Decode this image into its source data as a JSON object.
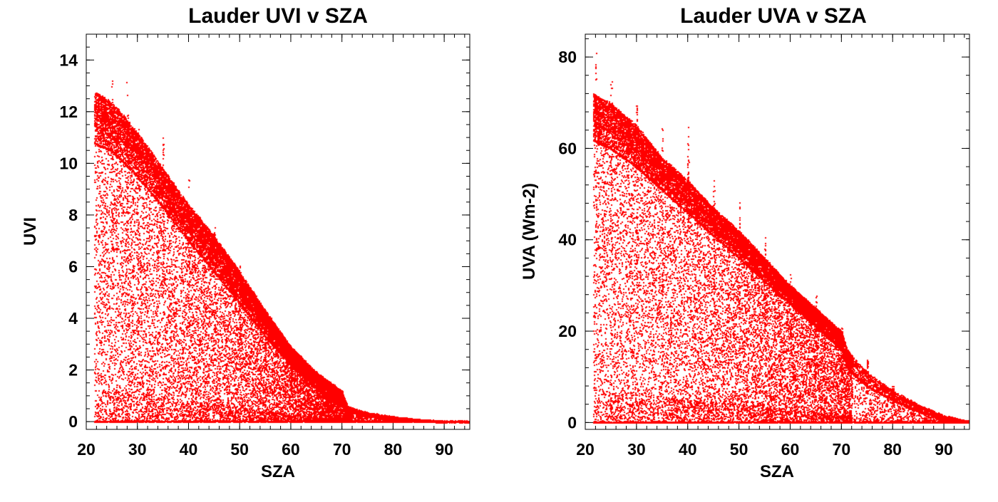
{
  "colors": {
    "background": "#ffffff",
    "axes": "#000000",
    "points": "#ff0000"
  },
  "chart_data": [
    {
      "type": "scatter",
      "title": "Lauder UVI v SZA",
      "xlabel": "SZA",
      "ylabel": "UVI",
      "xlim": [
        20,
        95
      ],
      "ylim": [
        -0.3,
        15
      ],
      "xticks": [
        20,
        30,
        40,
        50,
        60,
        70,
        80,
        90
      ],
      "yticks": [
        0,
        2,
        4,
        6,
        8,
        10,
        12,
        14
      ],
      "x_minor_step": 2,
      "y_minor_step": 0.5,
      "grid": false,
      "legend": "none",
      "sza_min": 21.5,
      "upper_envelope": [
        [
          21.5,
          12.8
        ],
        [
          25,
          12.4
        ],
        [
          30,
          11.2
        ],
        [
          35,
          9.8
        ],
        [
          40,
          8.4
        ],
        [
          45,
          7.2
        ],
        [
          50,
          5.8
        ],
        [
          55,
          4.3
        ],
        [
          60,
          2.9
        ],
        [
          65,
          1.9
        ],
        [
          70,
          1.2
        ],
        [
          71,
          0.6
        ],
        [
          75,
          0.35
        ],
        [
          80,
          0.2
        ],
        [
          85,
          0.08
        ],
        [
          90,
          0.02
        ],
        [
          95,
          0.0
        ]
      ],
      "dense_band": [
        [
          21.5,
          10.8
        ],
        [
          25,
          10.5
        ],
        [
          30,
          9.5
        ],
        [
          35,
          8.3
        ],
        [
          40,
          7.0
        ],
        [
          45,
          5.8
        ],
        [
          50,
          4.6
        ],
        [
          55,
          3.3
        ],
        [
          60,
          2.2
        ],
        [
          65,
          1.3
        ],
        [
          70,
          0.6
        ],
        [
          71,
          0.4
        ],
        [
          75,
          0.25
        ],
        [
          80,
          0.12
        ],
        [
          85,
          0.05
        ],
        [
          90,
          0.01
        ],
        [
          95,
          0.0
        ]
      ],
      "spikes": [
        [
          25,
          13.3
        ],
        [
          28,
          13.7
        ],
        [
          30,
          11.4
        ],
        [
          35,
          11.0
        ],
        [
          40,
          9.5
        ],
        [
          45,
          7.6
        ],
        [
          50,
          6.1
        ],
        [
          55,
          4.3
        ],
        [
          60,
          2.8
        ],
        [
          65,
          2.0
        ]
      ],
      "point_count": 26000
    },
    {
      "type": "scatter",
      "title": "Lauder UVA v SZA",
      "xlabel": "SZA",
      "ylabel": "UVA (Wm-2)",
      "xlim": [
        20,
        95
      ],
      "ylim": [
        -1.5,
        85
      ],
      "xticks": [
        20,
        30,
        40,
        50,
        60,
        70,
        80,
        90
      ],
      "yticks": [
        0,
        20,
        40,
        60,
        80
      ],
      "x_minor_step": 2,
      "y_minor_step": 4,
      "grid": false,
      "legend": "none",
      "sza_min": 21.5,
      "upper_envelope": [
        [
          21.5,
          72
        ],
        [
          25,
          70
        ],
        [
          30,
          65
        ],
        [
          35,
          58
        ],
        [
          40,
          53
        ],
        [
          45,
          47
        ],
        [
          50,
          42
        ],
        [
          55,
          36
        ],
        [
          60,
          30
        ],
        [
          65,
          25
        ],
        [
          70,
          20
        ],
        [
          71,
          16
        ],
        [
          75,
          11
        ],
        [
          80,
          7
        ],
        [
          85,
          4
        ],
        [
          90,
          1.5
        ],
        [
          95,
          0.3
        ]
      ],
      "dense_band": [
        [
          21.5,
          62
        ],
        [
          25,
          60
        ],
        [
          30,
          56
        ],
        [
          35,
          51
        ],
        [
          40,
          46
        ],
        [
          45,
          41
        ],
        [
          50,
          36
        ],
        [
          55,
          31
        ],
        [
          60,
          26
        ],
        [
          65,
          21
        ],
        [
          70,
          16
        ],
        [
          71,
          12
        ],
        [
          75,
          8
        ],
        [
          80,
          5
        ],
        [
          85,
          2.5
        ],
        [
          90,
          0.8
        ],
        [
          95,
          0.1
        ]
      ],
      "spikes": [
        [
          22,
          81
        ],
        [
          25,
          75
        ],
        [
          30,
          70
        ],
        [
          35,
          65
        ],
        [
          40,
          66
        ],
        [
          45,
          54
        ],
        [
          50,
          49
        ],
        [
          55,
          41
        ],
        [
          60,
          33
        ],
        [
          65,
          28
        ],
        [
          70,
          21
        ],
        [
          75,
          14
        ],
        [
          80,
          8
        ]
      ],
      "point_count": 26000
    }
  ]
}
